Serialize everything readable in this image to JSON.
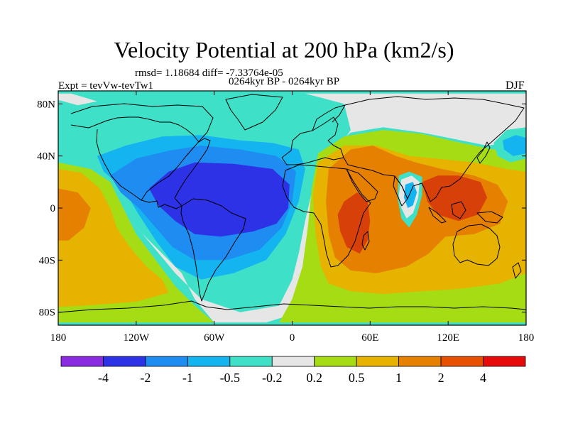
{
  "title": "Velocity Potential at 200 hPa (km2/s)",
  "stats": "rmsd= 1.18684 diff= -7.33764e-05",
  "expt": "Expt = tevVw-tevTw1",
  "period": "0264kyr BP - 0264kyr BP",
  "season": "DJF",
  "map_data": {
    "projection": "cylindrical-equidistant",
    "lon_range": [
      -180,
      180
    ],
    "lat_range": [
      -90,
      90
    ],
    "lon_ticks": [
      {
        "value": -180,
        "label": "180"
      },
      {
        "value": -120,
        "label": "120W"
      },
      {
        "value": -60,
        "label": "60W"
      },
      {
        "value": 0,
        "label": "0"
      },
      {
        "value": 60,
        "label": "60E"
      },
      {
        "value": 120,
        "label": "120E"
      },
      {
        "value": 180,
        "label": "180"
      }
    ],
    "lat_ticks": [
      {
        "value": 80,
        "label": "80N"
      },
      {
        "value": 40,
        "label": "40N"
      },
      {
        "value": 0,
        "label": "0"
      },
      {
        "value": -40,
        "label": "40S"
      },
      {
        "value": -80,
        "label": "80S"
      }
    ],
    "background_color": "#3fe0c8",
    "regions": [
      {
        "name": "neutral-band-north-pacific",
        "level": "-0.2..0.2",
        "color": "#e6e6e6",
        "pts": [
          [
            -180,
            83
          ],
          [
            -165,
            79
          ],
          [
            -150,
            82
          ],
          [
            -170,
            88
          ],
          [
            -180,
            88
          ]
        ]
      },
      {
        "name": "neutral-band-eastern-hemisphere",
        "level": "-0.2..0.2",
        "color": "#e6e6e6",
        "pts": [
          [
            10,
            88
          ],
          [
            40,
            80
          ],
          [
            45,
            60
          ],
          [
            35,
            45
          ],
          [
            25,
            30
          ],
          [
            22,
            10
          ],
          [
            20,
            -15
          ],
          [
            15,
            -40
          ],
          [
            10,
            -60
          ],
          [
            5,
            -80
          ],
          [
            -20,
            -88
          ],
          [
            -60,
            -88
          ],
          [
            -75,
            -70
          ],
          [
            -85,
            -50
          ],
          [
            -105,
            -30
          ],
          [
            -125,
            -10
          ],
          [
            -140,
            10
          ],
          [
            -150,
            20
          ],
          [
            -140,
            5
          ],
          [
            -115,
            -20
          ],
          [
            -90,
            -50
          ],
          [
            -70,
            -70
          ],
          [
            -40,
            -80
          ],
          [
            -10,
            -75
          ],
          [
            0,
            -55
          ],
          [
            5,
            -35
          ],
          [
            10,
            -10
          ],
          [
            18,
            25
          ],
          [
            30,
            45
          ],
          [
            45,
            58
          ],
          [
            70,
            62
          ],
          [
            100,
            58
          ],
          [
            130,
            52
          ],
          [
            150,
            48
          ],
          [
            165,
            50
          ],
          [
            180,
            48
          ],
          [
            180,
            88
          ]
        ]
      },
      {
        "name": "light-green-tropics-and-south",
        "level": "0.2..0.5",
        "color": "#a6dc14",
        "pts": [
          [
            -180,
            35
          ],
          [
            -155,
            30
          ],
          [
            -140,
            20
          ],
          [
            -130,
            0
          ],
          [
            -120,
            -20
          ],
          [
            -105,
            -40
          ],
          [
            -90,
            -60
          ],
          [
            -75,
            -75
          ],
          [
            -60,
            -88
          ],
          [
            -180,
            -88
          ]
        ]
      },
      {
        "name": "light-green-eastern-hemisphere",
        "level": "0.2..0.5",
        "color": "#a6dc14",
        "pts": [
          [
            20,
            42
          ],
          [
            40,
            55
          ],
          [
            70,
            60
          ],
          [
            100,
            57
          ],
          [
            130,
            50
          ],
          [
            155,
            45
          ],
          [
            180,
            46
          ],
          [
            180,
            -88
          ],
          [
            -10,
            -88
          ],
          [
            0,
            -70
          ],
          [
            8,
            -45
          ],
          [
            12,
            -15
          ],
          [
            15,
            15
          ]
        ]
      },
      {
        "name": "gold-pacific",
        "level": "0.5..1",
        "color": "#e6b400",
        "pts": [
          [
            -180,
            30
          ],
          [
            -162,
            27
          ],
          [
            -148,
            15
          ],
          [
            -140,
            0
          ],
          [
            -135,
            -15
          ],
          [
            -125,
            -30
          ],
          [
            -112,
            -45
          ],
          [
            -100,
            -55
          ],
          [
            -95,
            -65
          ],
          [
            -120,
            -72
          ],
          [
            -160,
            -75
          ],
          [
            -180,
            -76
          ]
        ]
      },
      {
        "name": "gold-indian-ocean",
        "level": "0.5..1",
        "color": "#e6b400",
        "pts": [
          [
            20,
            35
          ],
          [
            40,
            48
          ],
          [
            65,
            48
          ],
          [
            90,
            40
          ],
          [
            110,
            38
          ],
          [
            140,
            35
          ],
          [
            165,
            30
          ],
          [
            180,
            28
          ],
          [
            180,
            -50
          ],
          [
            160,
            -58
          ],
          [
            130,
            -62
          ],
          [
            100,
            -64
          ],
          [
            70,
            -66
          ],
          [
            45,
            -64
          ],
          [
            28,
            -58
          ],
          [
            22,
            -45
          ],
          [
            18,
            -20
          ],
          [
            16,
            10
          ]
        ]
      },
      {
        "name": "orange-pacific-west",
        "level": "1..2",
        "color": "#e68000",
        "pts": [
          [
            -180,
            15
          ],
          [
            -165,
            12
          ],
          [
            -155,
            0
          ],
          [
            -160,
            -15
          ],
          [
            -172,
            -25
          ],
          [
            -180,
            -25
          ]
        ]
      },
      {
        "name": "orange-indian-ocean",
        "level": "1..2",
        "color": "#e68000",
        "pts": [
          [
            28,
            30
          ],
          [
            45,
            45
          ],
          [
            62,
            48
          ],
          [
            80,
            40
          ],
          [
            95,
            35
          ],
          [
            115,
            30
          ],
          [
            140,
            25
          ],
          [
            158,
            18
          ],
          [
            166,
            5
          ],
          [
            160,
            -12
          ],
          [
            140,
            -20
          ],
          [
            118,
            -22
          ],
          [
            105,
            -35
          ],
          [
            88,
            -45
          ],
          [
            65,
            -50
          ],
          [
            45,
            -48
          ],
          [
            33,
            -38
          ],
          [
            28,
            -20
          ],
          [
            26,
            5
          ]
        ]
      },
      {
        "name": "red-africa",
        "level": "2..4",
        "color": "#d8400a",
        "pts": [
          [
            35,
            -5
          ],
          [
            40,
            5
          ],
          [
            50,
            12
          ],
          [
            58,
            5
          ],
          [
            60,
            -10
          ],
          [
            58,
            -25
          ],
          [
            52,
            -35
          ],
          [
            42,
            -30
          ],
          [
            37,
            -18
          ]
        ]
      },
      {
        "name": "red-maritime-continent",
        "level": "2..4",
        "color": "#d8400a",
        "pts": [
          [
            100,
            20
          ],
          [
            112,
            25
          ],
          [
            128,
            25
          ],
          [
            145,
            20
          ],
          [
            150,
            8
          ],
          [
            143,
            -5
          ],
          [
            128,
            -10
          ],
          [
            112,
            -5
          ],
          [
            104,
            5
          ]
        ]
      },
      {
        "name": "cyan-bay-of-bengal",
        "level": "-0.5..-0.2",
        "color": "#3fe0c8",
        "pts": [
          [
            82,
            25
          ],
          [
            90,
            28
          ],
          [
            100,
            24
          ],
          [
            100,
            10
          ],
          [
            96,
            -5
          ],
          [
            90,
            -15
          ],
          [
            84,
            -8
          ],
          [
            81,
            8
          ]
        ]
      },
      {
        "name": "white-bay-of-bengal-ring",
        "level": "-0.2..0.2",
        "color": "#e6e6e6",
        "pts": [
          [
            84,
            22
          ],
          [
            92,
            25
          ],
          [
            98,
            20
          ],
          [
            97,
            8
          ],
          [
            93,
            -4
          ],
          [
            88,
            -8
          ],
          [
            84,
            0
          ],
          [
            82,
            10
          ]
        ]
      },
      {
        "name": "blue-bay-of-bengal-core",
        "level": "-1..-0.5",
        "color": "#14b4f0",
        "pts": [
          [
            87,
            18
          ],
          [
            93,
            20
          ],
          [
            96,
            12
          ],
          [
            93,
            2
          ],
          [
            89,
            0
          ],
          [
            86,
            8
          ]
        ]
      },
      {
        "name": "cyan-north-pacific-east",
        "level": "-0.5..-0.2",
        "color": "#3fe0c8",
        "pts": [
          [
            155,
            50
          ],
          [
            165,
            60
          ],
          [
            180,
            62
          ],
          [
            180,
            38
          ],
          [
            168,
            35
          ],
          [
            158,
            40
          ]
        ]
      },
      {
        "name": "blue-north-pacific-east",
        "level": "-1..-0.5",
        "color": "#14b4f0",
        "pts": [
          [
            162,
            52
          ],
          [
            172,
            56
          ],
          [
            180,
            54
          ],
          [
            180,
            42
          ],
          [
            170,
            40
          ],
          [
            163,
            45
          ]
        ]
      },
      {
        "name": "light-blue-americas-atlantic",
        "level": "-1..-0.5",
        "color": "#14b4f0",
        "pts": [
          [
            -150,
            40
          ],
          [
            -128,
            48
          ],
          [
            -100,
            55
          ],
          [
            -70,
            56
          ],
          [
            -40,
            52
          ],
          [
            -15,
            50
          ],
          [
            5,
            45
          ],
          [
            10,
            30
          ],
          [
            5,
            5
          ],
          [
            -5,
            -20
          ],
          [
            -20,
            -40
          ],
          [
            -45,
            -50
          ],
          [
            -70,
            -55
          ],
          [
            -90,
            -45
          ],
          [
            -105,
            -25
          ],
          [
            -118,
            -5
          ],
          [
            -130,
            15
          ],
          [
            -145,
            28
          ]
        ]
      },
      {
        "name": "mid-blue-americas-atlantic",
        "level": "-2..-1",
        "color": "#1e8cf0",
        "pts": [
          [
            -140,
            25
          ],
          [
            -120,
            38
          ],
          [
            -95,
            44
          ],
          [
            -70,
            48
          ],
          [
            -40,
            45
          ],
          [
            -12,
            40
          ],
          [
            3,
            28
          ],
          [
            0,
            5
          ],
          [
            -8,
            -15
          ],
          [
            -25,
            -32
          ],
          [
            -50,
            -40
          ],
          [
            -75,
            -40
          ],
          [
            -92,
            -30
          ],
          [
            -105,
            -15
          ],
          [
            -118,
            0
          ],
          [
            -132,
            12
          ]
        ]
      },
      {
        "name": "deep-blue-brazil-atlantic",
        "level": "-4..-2",
        "color": "#2d32e6",
        "pts": [
          [
            -110,
            15
          ],
          [
            -95,
            28
          ],
          [
            -75,
            35
          ],
          [
            -45,
            34
          ],
          [
            -15,
            30
          ],
          [
            -2,
            18
          ],
          [
            -3,
            0
          ],
          [
            -12,
            -12
          ],
          [
            -30,
            -18
          ],
          [
            -55,
            -22
          ],
          [
            -75,
            -20
          ],
          [
            -90,
            -10
          ],
          [
            -103,
            2
          ]
        ]
      },
      {
        "name": "darkest-blue-amazon",
        "level": "-4..-2",
        "color": "#2d32e6",
        "pts": [
          [
            -85,
            5
          ],
          [
            -75,
            15
          ],
          [
            -60,
            15
          ],
          [
            -50,
            8
          ],
          [
            -48,
            -5
          ],
          [
            -55,
            -15
          ],
          [
            -68,
            -18
          ],
          [
            -80,
            -10
          ]
        ]
      }
    ],
    "colorbar": {
      "colors": [
        "#8a2be2",
        "#2d32e6",
        "#1e8cf0",
        "#14b4f0",
        "#3fe0c8",
        "#e6e6e6",
        "#a6dc14",
        "#e6b400",
        "#e68000",
        "#e65000",
        "#e60a0a"
      ],
      "labels": [
        "-4",
        "-2",
        "-1",
        "-0.5",
        "-0.2",
        "0.2",
        "0.5",
        "1",
        "2",
        "4"
      ]
    }
  }
}
